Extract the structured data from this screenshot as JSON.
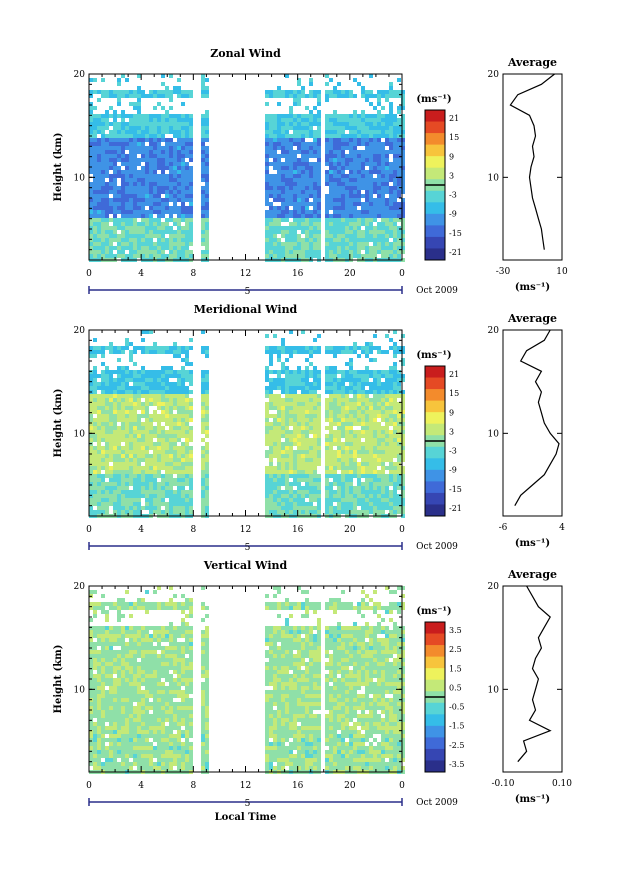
{
  "chart_data": [
    {
      "type": "heatmap",
      "title": "Zonal Wind",
      "ylabel": "Height (km)",
      "xlabel": "",
      "xlim": [
        0,
        24
      ],
      "ylim": [
        2,
        20
      ],
      "x_ticks": [
        "0",
        "4",
        "8",
        "12",
        "16",
        "20",
        "0"
      ],
      "y_ticks": [
        "10",
        "20"
      ],
      "date_label": "5",
      "month_label": "Oct 2009",
      "colorbar": {
        "unit": "(ms⁻¹)",
        "ticks": [
          "21",
          "15",
          "9",
          "3",
          "-3",
          "-9",
          "-15",
          "-21"
        ],
        "range": [
          -24,
          24
        ]
      },
      "gaps_hours": [
        [
          8.1,
          8.5
        ],
        [
          9.3,
          13.4
        ],
        [
          17.7,
          18.0
        ]
      ],
      "profile": {
        "title": "Average",
        "xlabel": "(ms⁻¹)",
        "x_ticks": [
          "-30",
          "10"
        ],
        "xlim": [
          -30,
          10
        ],
        "y_ticks": [
          "10",
          "20"
        ],
        "heights": [
          3,
          4,
          5,
          6,
          7,
          8,
          9,
          10,
          11,
          12,
          13,
          14,
          15,
          16,
          17,
          18,
          19,
          20
        ],
        "values": [
          -2,
          -3,
          -4,
          -6,
          -8,
          -10,
          -11,
          -12,
          -11,
          -9,
          -10,
          -8,
          -9,
          -12,
          -25,
          -20,
          -4,
          5
        ]
      },
      "field": {
        "low": -2,
        "mid": -12,
        "top": -5
      }
    },
    {
      "type": "heatmap",
      "title": "Meridional Wind",
      "ylabel": "Height (km)",
      "xlabel": "",
      "xlim": [
        0,
        24
      ],
      "ylim": [
        2,
        20
      ],
      "x_ticks": [
        "0",
        "4",
        "8",
        "12",
        "16",
        "20",
        "0"
      ],
      "y_ticks": [
        "10",
        "20"
      ],
      "date_label": "5",
      "month_label": "Oct 2009",
      "colorbar": {
        "unit": "(ms⁻¹)",
        "ticks": [
          "21",
          "15",
          "9",
          "3",
          "-3",
          "-9",
          "-15",
          "-21"
        ],
        "range": [
          -24,
          24
        ]
      },
      "gaps_hours": [
        [
          8.1,
          8.5
        ],
        [
          9.3,
          13.4
        ],
        [
          17.7,
          18.0
        ]
      ],
      "profile": {
        "title": "Average",
        "xlabel": "(ms⁻¹)",
        "x_ticks": [
          "-6",
          "4"
        ],
        "xlim": [
          -6,
          4
        ],
        "y_ticks": [
          "10",
          "20"
        ],
        "heights": [
          3,
          4,
          5,
          6,
          7,
          8,
          9,
          10,
          11,
          12,
          13,
          14,
          15,
          16,
          17,
          18,
          19,
          20
        ],
        "values": [
          -4,
          -3,
          -1,
          1,
          2,
          3,
          3.5,
          2,
          1,
          0.5,
          0,
          0.5,
          -0.5,
          0.5,
          -3,
          -2,
          1,
          2
        ]
      },
      "field": {
        "low": -2,
        "mid": 3,
        "top": -6
      }
    },
    {
      "type": "heatmap",
      "title": "Vertical Wind",
      "ylabel": "Height (km)",
      "xlabel": "Local Time",
      "xlim": [
        0,
        24
      ],
      "ylim": [
        2,
        20
      ],
      "x_ticks": [
        "0",
        "4",
        "8",
        "12",
        "16",
        "20",
        "0"
      ],
      "y_ticks": [
        "10",
        "20"
      ],
      "date_label": "5",
      "month_label": "Oct 2009",
      "colorbar": {
        "unit": "(ms⁻¹)",
        "ticks": [
          "3.5",
          "2.5",
          "1.5",
          "0.5",
          "-0.5",
          "-1.5",
          "-2.5",
          "-3.5"
        ],
        "range": [
          -4,
          4
        ]
      },
      "gaps_hours": [
        [
          8.1,
          8.5
        ],
        [
          9.3,
          13.4
        ],
        [
          17.7,
          18.0
        ]
      ],
      "profile": {
        "title": "Average",
        "xlabel": "(ms⁻¹)",
        "x_ticks": [
          "-0.10",
          "0.10"
        ],
        "xlim": [
          -0.1,
          0.1
        ],
        "y_ticks": [
          "10",
          "20"
        ],
        "heights": [
          3,
          4,
          5,
          6,
          7,
          8,
          9,
          10,
          11,
          12,
          13,
          14,
          15,
          16,
          17,
          18,
          19,
          20
        ],
        "values": [
          -0.05,
          -0.02,
          -0.03,
          0.06,
          -0.01,
          0.01,
          0.0,
          0.01,
          0.02,
          0.0,
          0.01,
          0.03,
          0.02,
          0.04,
          0.06,
          0.02,
          0.0,
          -0.02
        ]
      },
      "field": {
        "low": 0.1,
        "mid": 0.2,
        "top": 0.1
      }
    }
  ]
}
